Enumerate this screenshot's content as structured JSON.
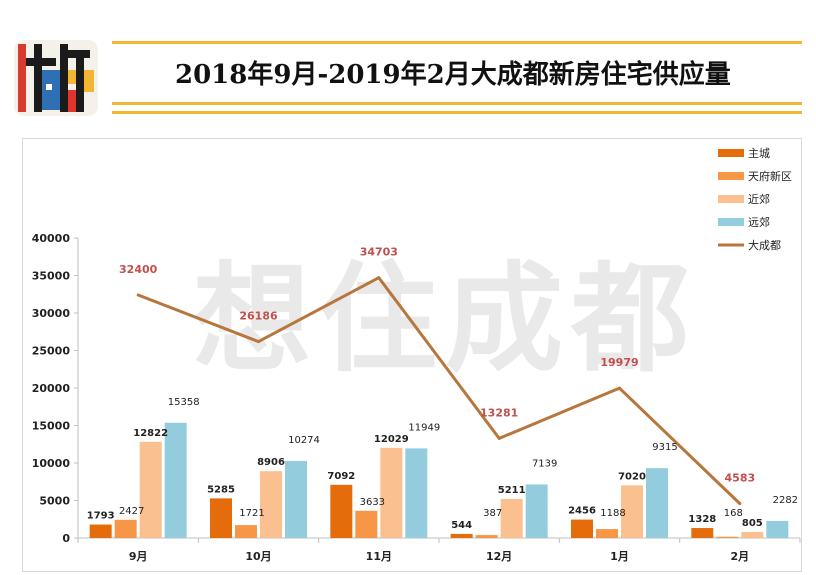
{
  "header": {
    "title": "2018年9月-2019年2月大成都新房住宅供应量"
  },
  "watermark": "想住成都",
  "colors": {
    "accent_rule": "#f2b632",
    "main_city": "#e46c0a",
    "tianfu": "#f79646",
    "near_suburb": "#fac090",
    "far_suburb": "#93cddd",
    "total_line": "#b7763c",
    "total_label": "#c0504d"
  },
  "chart_data": {
    "type": "bar",
    "categories": [
      "9月",
      "10月",
      "11月",
      "12月",
      "1月",
      "2月"
    ],
    "series": [
      {
        "name": "主城",
        "type": "bar",
        "values": [
          1793,
          5285,
          7092,
          544,
          2456,
          1328
        ]
      },
      {
        "name": "天府新区",
        "type": "bar",
        "values": [
          2427,
          1721,
          3633,
          387,
          1188,
          168
        ]
      },
      {
        "name": "近郊",
        "type": "bar",
        "values": [
          12822,
          8906,
          12029,
          5211,
          7020,
          805
        ]
      },
      {
        "name": "远郊",
        "type": "bar",
        "values": [
          15358,
          10274,
          11949,
          7139,
          9315,
          2282
        ]
      },
      {
        "name": "大成都",
        "type": "line",
        "values": [
          32400,
          26186,
          34703,
          13281,
          19979,
          4583
        ]
      }
    ],
    "ylim": [
      0,
      40000
    ],
    "yticks": [
      0,
      5000,
      10000,
      15000,
      20000,
      25000,
      30000,
      35000,
      40000
    ],
    "legend_position": "top-right",
    "grid": false
  }
}
